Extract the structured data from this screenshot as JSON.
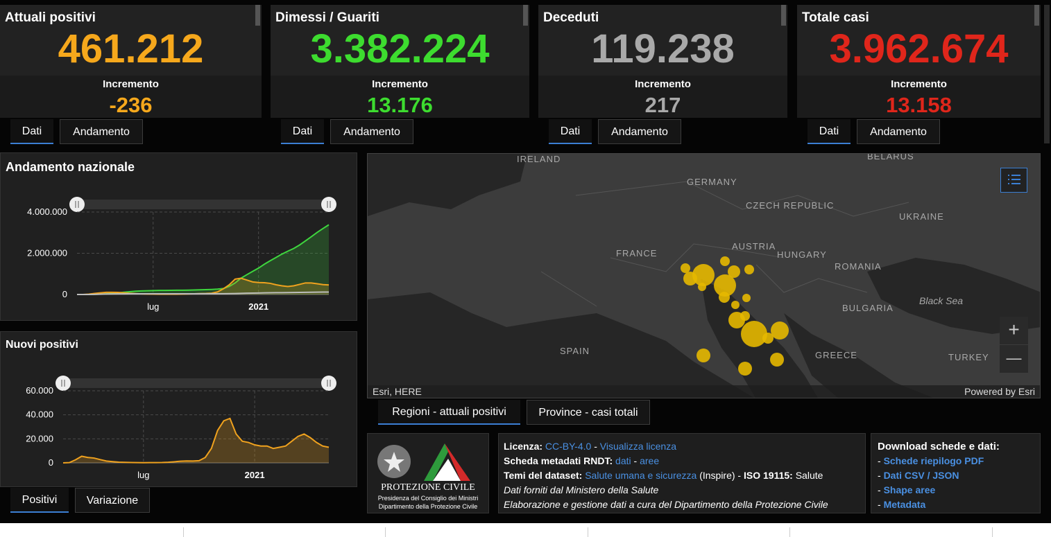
{
  "cards": [
    {
      "title": "Attuali positivi",
      "value": "461.212",
      "increment_label": "Incremento",
      "increment": "-236",
      "color": "#f6a81c",
      "tabs": [
        "Dati",
        "Andamento"
      ]
    },
    {
      "title": "Dimessi / Guariti",
      "value": "3.382.224",
      "increment_label": "Incremento",
      "increment": "13.176",
      "color": "#3ddc2f",
      "tabs": [
        "Dati",
        "Andamento"
      ]
    },
    {
      "title": "Deceduti",
      "value": "119.238",
      "increment_label": "Incremento",
      "increment": "217",
      "color": "#a9a9a9",
      "tabs": [
        "Dati",
        "Andamento"
      ]
    },
    {
      "title": "Totale casi",
      "value": "3.962.674",
      "increment_label": "Incremento",
      "increment": "13.158",
      "color": "#e0261b",
      "tabs": [
        "Dati",
        "Andamento"
      ]
    }
  ],
  "chart_data": [
    {
      "type": "line",
      "title": "Andamento nazionale",
      "categories": [
        null,
        null,
        null,
        null,
        null,
        null,
        null,
        null,
        null,
        null,
        null,
        null,
        null,
        "lug",
        null,
        null,
        null,
        null,
        null,
        null,
        null,
        null,
        null,
        null,
        null,
        null,
        null,
        null,
        null,
        null,
        null,
        "2021",
        null,
        null,
        null,
        null,
        null,
        null,
        null,
        null,
        null,
        null,
        null,
        null
      ],
      "series": [
        {
          "color": "#3ed63e",
          "fill": "rgba(62,214,62,0.22)",
          "values": [
            0,
            100,
            1500,
            10000,
            20000,
            35000,
            57000,
            80000,
            110000,
            135000,
            160000,
            172000,
            182000,
            190000,
            196000,
            199000,
            201000,
            204000,
            207000,
            212000,
            219000,
            226000,
            234000,
            245000,
            260000,
            290000,
            390000,
            560000,
            790000,
            960000,
            1120000,
            1280000,
            1470000,
            1640000,
            1800000,
            1960000,
            2100000,
            2230000,
            2400000,
            2600000,
            2800000,
            3010000,
            3200000,
            3382224
          ]
        },
        {
          "color": "#f0a21e",
          "fill": "rgba(240,162,30,0.22)",
          "values": [
            0,
            1600,
            15000,
            50000,
            80000,
            104000,
            107000,
            100000,
            82000,
            57000,
            42000,
            30000,
            20000,
            16000,
            13000,
            12400,
            12400,
            13000,
            17000,
            26000,
            33000,
            44000,
            50000,
            65000,
            126000,
            276000,
            472000,
            744000,
            790000,
            700000,
            610000,
            580000,
            570000,
            540000,
            470000,
            420000,
            385000,
            420000,
            490000,
            560000,
            560000,
            520000,
            480000,
            461212
          ]
        },
        {
          "color": "#bdbdbd",
          "fill": null,
          "values": [
            7,
            79,
            1266,
            6077,
            13915,
            19899,
            25085,
            28710,
            30911,
            32616,
            33475,
            34043,
            34634,
            34767,
            34954,
            35092,
            35154,
            35225,
            35427,
            35483,
            35587,
            35724,
            35918,
            36111,
            36616,
            38122,
            41394,
            47870,
            55576,
            61739,
            67894,
            73029,
            77911,
            82177,
            86422,
            89820,
            93835,
            97227,
            100479,
            104942,
            109346,
            113579,
            116676,
            119238
          ]
        }
      ],
      "ylim": [
        0,
        4000000
      ],
      "yticks": [
        {
          "value": 0,
          "label": "0"
        },
        {
          "value": 2000000,
          "label": "2.000.000"
        },
        {
          "value": 4000000,
          "label": "4.000.000"
        }
      ],
      "grid": true
    },
    {
      "type": "line",
      "title": "Nuovi positivi",
      "categories": [
        null,
        null,
        null,
        null,
        null,
        null,
        null,
        null,
        null,
        null,
        null,
        null,
        null,
        "lug",
        null,
        null,
        null,
        null,
        null,
        null,
        null,
        null,
        null,
        null,
        null,
        null,
        null,
        null,
        null,
        null,
        null,
        "2021",
        null,
        null,
        null,
        null,
        null,
        null,
        null,
        null,
        null,
        null,
        null,
        null
      ],
      "series": [
        {
          "color": "#f0a21e",
          "fill": "rgba(240,162,30,0.25)",
          "values": [
            0,
            200,
            2500,
            5500,
            4500,
            4000,
            2700,
            1500,
            1000,
            600,
            400,
            300,
            200,
            150,
            200,
            250,
            300,
            500,
            900,
            1400,
            1600,
            1500,
            1800,
            4500,
            12000,
            27000,
            35000,
            37000,
            24000,
            18000,
            17000,
            15000,
            14000,
            14000,
            12000,
            13000,
            14000,
            18000,
            22000,
            24000,
            21000,
            17000,
            14000,
            13000
          ]
        }
      ],
      "ylim": [
        0,
        60000
      ],
      "yticks": [
        {
          "value": 0,
          "label": "0"
        },
        {
          "value": 20000,
          "label": "20.000"
        },
        {
          "value": 40000,
          "label": "40.000"
        },
        {
          "value": 60000,
          "label": "60.000"
        }
      ],
      "grid": true,
      "tabs": [
        "Positivi",
        "Variazione"
      ]
    }
  ],
  "map": {
    "labels": [
      "IRELAND",
      "GERMANY",
      "CZECH REPUBLIC",
      "BELARUS",
      "UKRAINE",
      "FRANCE",
      "AUSTRIA",
      "HUNGARY",
      "ROMANIA",
      "Black Sea",
      "BULGARIA",
      "SPAIN",
      "GREECE",
      "TURKEY"
    ],
    "attribution": "Esri, HERE",
    "powered": "Powered by Esri",
    "tabs": [
      "Regioni - attuali positivi",
      "Province - casi totali"
    ]
  },
  "logo": {
    "name": "PROTEZIONE CIVILE",
    "line1": "Presidenza del Consiglio dei Ministri",
    "line2": "Dipartimento della Protezione Civile"
  },
  "info": {
    "lines": [
      [
        {
          "b": "Licenza:"
        },
        {
          "t": " "
        },
        {
          "a": "CC-BY-4.0"
        },
        {
          "t": " - "
        },
        {
          "a": "Visualizza licenza"
        }
      ],
      [
        {
          "b": "Scheda metadati RNDT:"
        },
        {
          "t": " "
        },
        {
          "a": "dati"
        },
        {
          "t": " - "
        },
        {
          "a": "aree"
        }
      ],
      [
        {
          "b": "Temi del dataset:"
        },
        {
          "t": " "
        },
        {
          "a": "Salute umana e sicurezza"
        },
        {
          "t": " (Inspire) - "
        },
        {
          "b": "ISO 19115:"
        },
        {
          "t": " Salute"
        }
      ],
      [
        {
          "i": "Dati forniti dal Ministero della Salute"
        }
      ],
      [
        {
          "i": "Elaborazione e gestione dati a cura del Dipartimento della Protezione Civile"
        }
      ]
    ]
  },
  "download": {
    "title": "Download schede e dati:",
    "bullet": "- ",
    "items": [
      "Schede riepilogo PDF",
      "Dati CSV / JSON",
      "Shape aree",
      "Metadata"
    ]
  }
}
